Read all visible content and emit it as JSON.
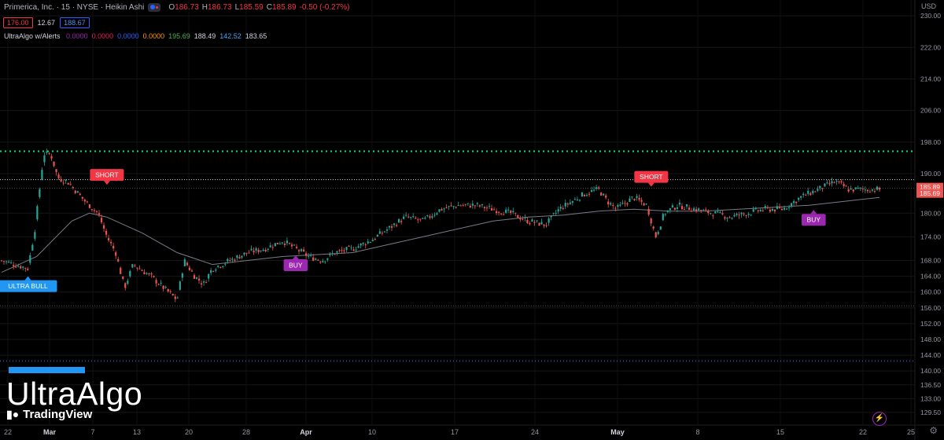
{
  "header": {
    "title": "Primerica, Inc. · 15 · NYSE · Heikin Ashi",
    "open_label": "O",
    "open": "186.73",
    "high_label": "H",
    "high": "186.73",
    "low_label": "L",
    "low": "185.59",
    "close_label": "C",
    "close": "185.89",
    "change": "-0.50 (-0.27%)",
    "sell_price": "176.00",
    "spread": "12.67",
    "buy_price": "188.67",
    "currency": "USD"
  },
  "indicator": {
    "name": "UltraAlgo w/Alerts",
    "values": [
      {
        "text": "0.0000",
        "color": "#9c27b0"
      },
      {
        "text": "0.0000",
        "color": "#e91e63"
      },
      {
        "text": "0.0000",
        "color": "#2962ff"
      },
      {
        "text": "0.0000",
        "color": "#ff9800"
      },
      {
        "text": "195.69",
        "color": "#4caf50"
      },
      {
        "text": "188.49",
        "color": "#d1d4dc"
      },
      {
        "text": "142.52",
        "color": "#42a5f5"
      },
      {
        "text": "183.65",
        "color": "#d1d4dc"
      }
    ]
  },
  "branding": {
    "logo": "UltraAlgo",
    "watermark": "TradingView",
    "watermark_icon": "tradingview-logo-icon",
    "bolt_icon": "lightning-icon",
    "settings_icon": "gear-icon"
  },
  "colors": {
    "up": "#26a69a",
    "down": "#ef5350",
    "short_signal": "#f23645",
    "buy_signal": "#9c27b0",
    "ultra_bull": "#2196f3",
    "green_level": "#00e676",
    "blue_level": "#3f51b5",
    "moving_average": "#787b86"
  },
  "chart_data": {
    "type": "candlestick",
    "style": "Heikin Ashi",
    "interval": "15",
    "ylim": [
      126.5,
      234
    ],
    "y_ticks": [
      "230.00",
      "222.00",
      "214.00",
      "206.00",
      "198.00",
      "190.00",
      "180.00",
      "174.00",
      "168.00",
      "164.00",
      "160.00",
      "156.00",
      "152.00",
      "148.00",
      "144.00",
      "140.00",
      "136.50",
      "133.00",
      "129.50"
    ],
    "x_ticks": [
      "22",
      "Mar",
      "7",
      "13",
      "20",
      "28",
      "Apr",
      "10",
      "17",
      "24",
      "May",
      "8",
      "15",
      "22",
      "25"
    ],
    "price_labels": [
      {
        "value": 185.89,
        "text": "185.89"
      },
      {
        "value": 185.69,
        "text": "185.69"
      }
    ],
    "levels": [
      {
        "name": "resistance",
        "value": 195.69,
        "style": "green-dotted"
      },
      {
        "name": "upper",
        "value": 188.49,
        "style": "white-dotted"
      },
      {
        "name": "lower",
        "value": 156.5,
        "style": "grey-dotted"
      },
      {
        "name": "support",
        "value": 142.52,
        "style": "blue-dotted"
      }
    ],
    "price_path": [
      {
        "x": 0.0,
        "y": 168
      },
      {
        "x": 3.0,
        "y": 166
      },
      {
        "x": 3.8,
        "y": 176
      },
      {
        "x": 4.8,
        "y": 195
      },
      {
        "x": 5.6,
        "y": 195
      },
      {
        "x": 6.4,
        "y": 189
      },
      {
        "x": 7.5,
        "y": 188
      },
      {
        "x": 9.5,
        "y": 183
      },
      {
        "x": 11.0,
        "y": 180
      },
      {
        "x": 12.0,
        "y": 174
      },
      {
        "x": 13.0,
        "y": 170
      },
      {
        "x": 14.0,
        "y": 161
      },
      {
        "x": 15.0,
        "y": 167
      },
      {
        "x": 17.0,
        "y": 164
      },
      {
        "x": 18.5,
        "y": 161
      },
      {
        "x": 20.0,
        "y": 158
      },
      {
        "x": 20.8,
        "y": 168
      },
      {
        "x": 22.0,
        "y": 164
      },
      {
        "x": 23.0,
        "y": 162
      },
      {
        "x": 24.0,
        "y": 166
      },
      {
        "x": 26.0,
        "y": 168
      },
      {
        "x": 28.0,
        "y": 170
      },
      {
        "x": 30.0,
        "y": 171
      },
      {
        "x": 32.0,
        "y": 173
      },
      {
        "x": 33.5,
        "y": 171
      },
      {
        "x": 35.0,
        "y": 169
      },
      {
        "x": 36.5,
        "y": 168
      },
      {
        "x": 38.0,
        "y": 170
      },
      {
        "x": 40.0,
        "y": 171
      },
      {
        "x": 42.0,
        "y": 173
      },
      {
        "x": 44.0,
        "y": 176
      },
      {
        "x": 46.0,
        "y": 179
      },
      {
        "x": 48.0,
        "y": 178
      },
      {
        "x": 50.0,
        "y": 181
      },
      {
        "x": 52.0,
        "y": 182
      },
      {
        "x": 54.0,
        "y": 182
      },
      {
        "x": 56.0,
        "y": 181
      },
      {
        "x": 58.0,
        "y": 180
      },
      {
        "x": 60.0,
        "y": 178
      },
      {
        "x": 62.0,
        "y": 177
      },
      {
        "x": 63.5,
        "y": 181
      },
      {
        "x": 65.0,
        "y": 183
      },
      {
        "x": 66.5,
        "y": 185
      },
      {
        "x": 68.0,
        "y": 186
      },
      {
        "x": 69.0,
        "y": 183
      },
      {
        "x": 70.0,
        "y": 181
      },
      {
        "x": 72.0,
        "y": 184
      },
      {
        "x": 73.5,
        "y": 182
      },
      {
        "x": 74.5,
        "y": 174
      },
      {
        "x": 75.5,
        "y": 180
      },
      {
        "x": 77.0,
        "y": 182
      },
      {
        "x": 79.0,
        "y": 181
      },
      {
        "x": 81.0,
        "y": 180
      },
      {
        "x": 83.0,
        "y": 179
      },
      {
        "x": 85.0,
        "y": 180
      },
      {
        "x": 87.0,
        "y": 181
      },
      {
        "x": 89.0,
        "y": 181
      },
      {
        "x": 91.0,
        "y": 184
      },
      {
        "x": 93.0,
        "y": 186
      },
      {
        "x": 95.0,
        "y": 188
      },
      {
        "x": 96.5,
        "y": 186
      },
      {
        "x": 98.0,
        "y": 186
      },
      {
        "x": 100.0,
        "y": 186
      }
    ],
    "moving_average": [
      {
        "x": 0,
        "y": 165
      },
      {
        "x": 4,
        "y": 169
      },
      {
        "x": 8,
        "y": 178
      },
      {
        "x": 10,
        "y": 180
      },
      {
        "x": 12,
        "y": 179
      },
      {
        "x": 16,
        "y": 175
      },
      {
        "x": 20,
        "y": 170
      },
      {
        "x": 24,
        "y": 167
      },
      {
        "x": 28,
        "y": 168
      },
      {
        "x": 32,
        "y": 169
      },
      {
        "x": 36,
        "y": 169.5
      },
      {
        "x": 40,
        "y": 170
      },
      {
        "x": 44,
        "y": 172
      },
      {
        "x": 48,
        "y": 174
      },
      {
        "x": 52,
        "y": 176
      },
      {
        "x": 56,
        "y": 178
      },
      {
        "x": 60,
        "y": 179
      },
      {
        "x": 64,
        "y": 179.5
      },
      {
        "x": 68,
        "y": 180.5
      },
      {
        "x": 72,
        "y": 181
      },
      {
        "x": 76,
        "y": 180.5
      },
      {
        "x": 80,
        "y": 180.5
      },
      {
        "x": 84,
        "y": 181
      },
      {
        "x": 88,
        "y": 181.5
      },
      {
        "x": 92,
        "y": 182
      },
      {
        "x": 96,
        "y": 183
      },
      {
        "x": 100,
        "y": 184
      }
    ],
    "signals": [
      {
        "text": "ULTRA BULL",
        "type": "ultra_bull",
        "x": 3.0,
        "value": 166.0,
        "placement": "below"
      },
      {
        "text": "SHORT",
        "type": "short",
        "x": 12.0,
        "value": 187.0,
        "placement": "above"
      },
      {
        "text": "BUY",
        "type": "buy",
        "x": 33.5,
        "value": 170.5,
        "placement": "below"
      },
      {
        "text": "SHORT",
        "type": "short",
        "x": 74.0,
        "value": 186.5,
        "placement": "above"
      },
      {
        "text": "BUY",
        "type": "buy",
        "x": 92.5,
        "value": 182.0,
        "placement": "below"
      }
    ]
  }
}
